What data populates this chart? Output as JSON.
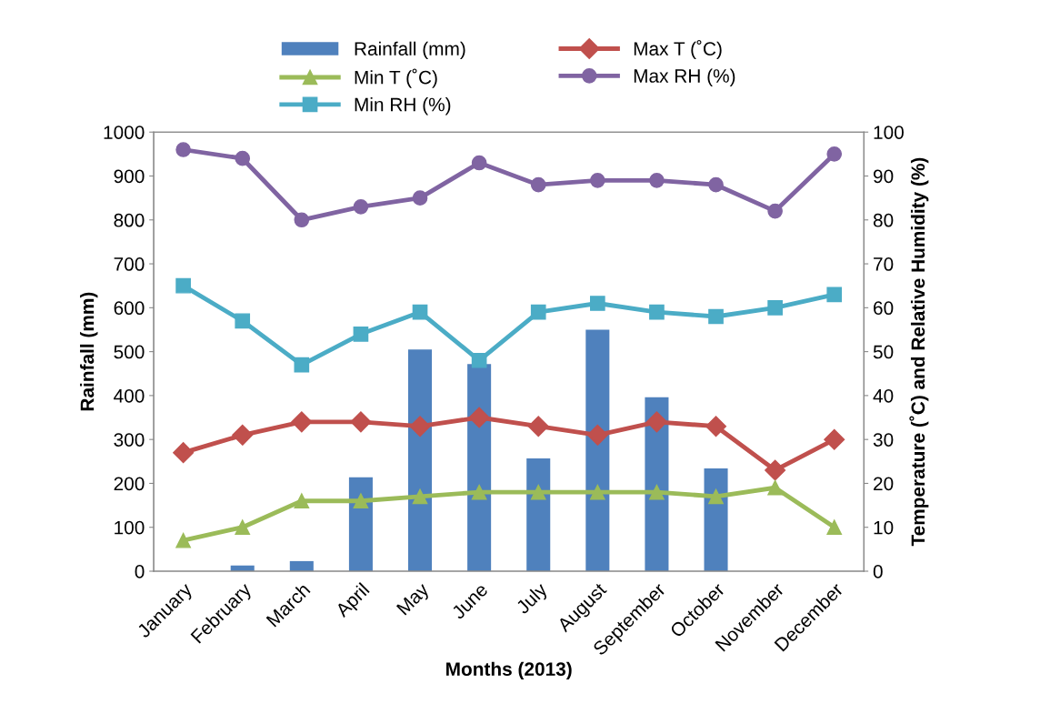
{
  "chart_data": {
    "type": "bar",
    "xlabel": "Months (2013)",
    "ylabel": "Rainfall (mm)",
    "y2label": "Temperature (˚C) and Relative Humidity (%)",
    "categories": [
      "January",
      "February",
      "March",
      "April",
      "May",
      "June",
      "July",
      "August",
      "September",
      "October",
      "November",
      "December"
    ],
    "series": [
      {
        "name": "Rainfall (mm)",
        "color": "#4f81bd",
        "values": [
          0,
          13,
          23,
          214,
          505,
          472,
          257,
          550,
          396,
          234,
          null,
          0
        ]
      },
      {
        "name": "Max T (˚C)",
        "type": "line",
        "axis": "y2",
        "marker": "diamond",
        "color": "#c0504d",
        "values": [
          27,
          31,
          34,
          34,
          33,
          35,
          33,
          31,
          34,
          33,
          23,
          30
        ]
      },
      {
        "name": "Min T (˚C)",
        "type": "line",
        "axis": "y2",
        "marker": "triangle",
        "color": "#9bbb59",
        "values": [
          7,
          10,
          16,
          16,
          17,
          18,
          18,
          18,
          18,
          17,
          19,
          10
        ]
      },
      {
        "name": "Max RH (%)",
        "type": "line",
        "axis": "y2",
        "marker": "circle",
        "color": "#8064a2",
        "values": [
          96,
          94,
          80,
          83,
          85,
          93,
          88,
          89,
          89,
          88,
          82,
          95
        ]
      },
      {
        "name": "Min RH (%)",
        "type": "line",
        "axis": "y2",
        "marker": "square",
        "color": "#4bacc6",
        "values": [
          65,
          57,
          47,
          54,
          59,
          48,
          59,
          61,
          59,
          58,
          60,
          63
        ]
      }
    ],
    "ylim": [
      0,
      1000
    ],
    "yticks": [
      0,
      100,
      200,
      300,
      400,
      500,
      600,
      700,
      800,
      900,
      1000
    ],
    "y2lim": [
      0,
      100
    ],
    "y2ticks": [
      0,
      10,
      20,
      30,
      40,
      50,
      60,
      70,
      80,
      90,
      100
    ],
    "grid": false,
    "legend": "top",
    "line_style": "solid"
  }
}
